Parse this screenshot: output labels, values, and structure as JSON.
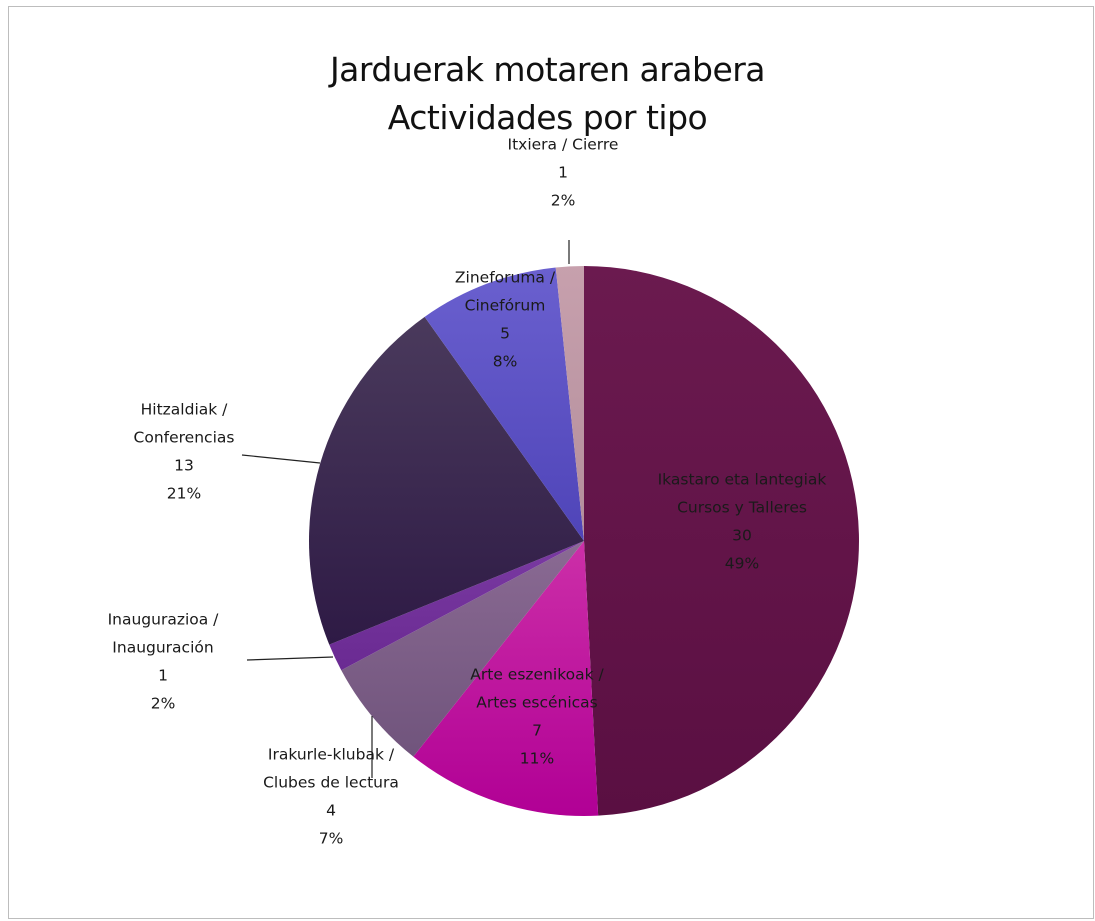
{
  "chart_data": {
    "type": "pie",
    "title": "Jarduerak motaren arabera",
    "subtitle": "Actividades por tipo",
    "legend": "none",
    "slices": [
      {
        "name": "Ikastaro eta lantegiak",
        "name2": "Cursos y Talleres",
        "value": 30,
        "percent": "49%",
        "color": "#6b1a4f",
        "color2": "#5a0f42"
      },
      {
        "name": "Arte eszenikoak /",
        "name2": "Artes escénicas",
        "value": 7,
        "percent": "11%",
        "color": "#cc2fa8",
        "color2": "#b10095"
      },
      {
        "name": "Irakurle-klubak /",
        "name2": "Clubes de lectura",
        "value": 4,
        "percent": "7%",
        "color": "#8a6a93",
        "color2": "#70547c"
      },
      {
        "name": "Inaugurazioa /",
        "name2": "Inauguración",
        "value": 1,
        "percent": "2%",
        "color": "#7a3aa2",
        "color2": "#6a2a92"
      },
      {
        "name": "Hitzaldiak /",
        "name2": "Conferencias",
        "value": 13,
        "percent": "21%",
        "color": "#4a3a5c",
        "color2": "#2e1a45"
      },
      {
        "name": "Zineforuma /",
        "name2": "Cinefórum",
        "value": 5,
        "percent": "8%",
        "color": "#6a60cf",
        "color2": "#4f44b8"
      },
      {
        "name": "Itxiera / Cierre",
        "name2": "",
        "value": 1,
        "percent": "2%",
        "color": "#c7a0ad",
        "color2": "#b38e9b"
      }
    ]
  }
}
